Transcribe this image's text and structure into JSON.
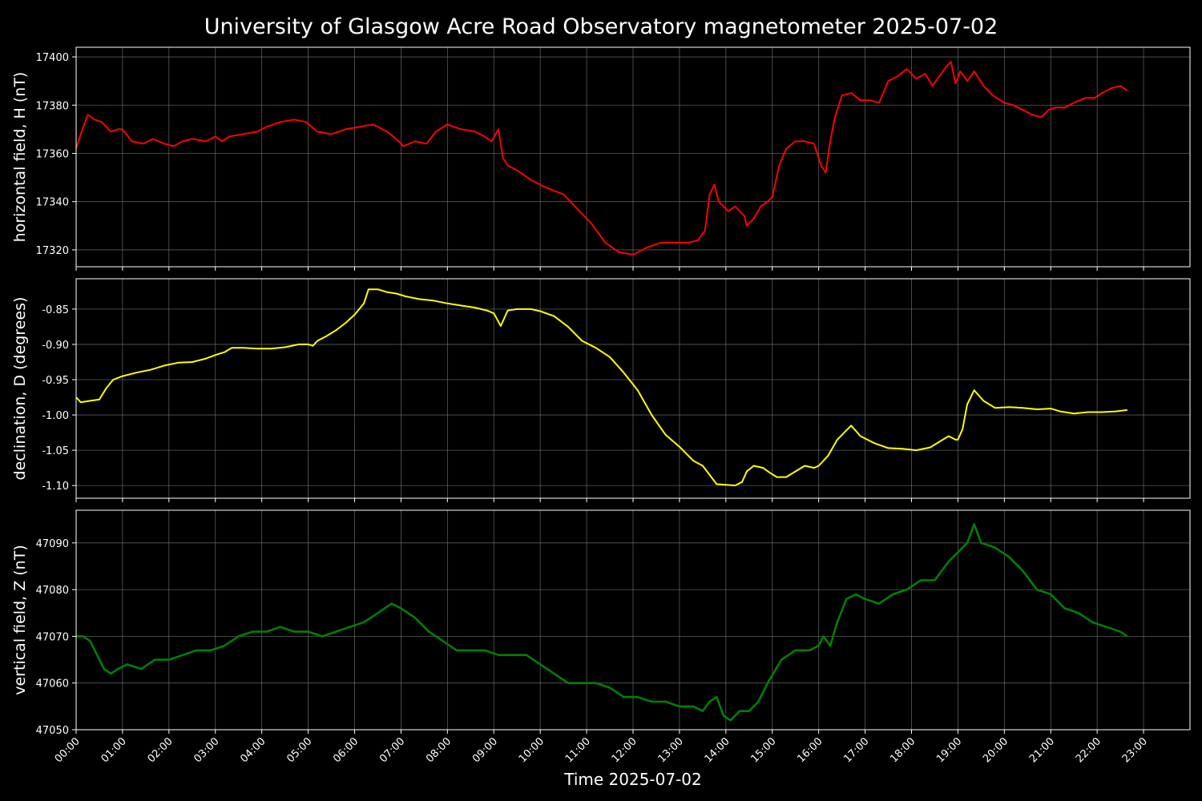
{
  "figure": {
    "title": "University of Glasgow Acre Road Observatory magnetometer 2025-07-02",
    "xlabel": "Time 2025-07-02",
    "x_ticks": [
      "00:00",
      "01:00",
      "02:00",
      "03:00",
      "04:00",
      "05:00",
      "06:00",
      "07:00",
      "08:00",
      "09:00",
      "10:00",
      "11:00",
      "12:00",
      "13:00",
      "14:00",
      "15:00",
      "16:00",
      "17:00",
      "18:00",
      "19:00",
      "20:00",
      "21:00",
      "22:00",
      "23:00"
    ],
    "background": "#000000",
    "grid_color": "#808080"
  },
  "chart_data": [
    {
      "type": "line",
      "ylabel": "horizontal field, H (nT)",
      "color": "#ff0000",
      "xlim": [
        0,
        24
      ],
      "ylim": [
        17313,
        17404
      ],
      "y_ticks": [
        17320,
        17340,
        17360,
        17380,
        17400
      ],
      "x_unit": "hours",
      "series": [
        {
          "x": [
            0,
            0.1,
            0.25,
            0.4,
            0.55,
            0.75,
            0.9,
            1.0,
            1.2,
            1.45,
            1.65,
            1.9,
            2.1,
            2.3,
            2.5,
            2.8,
            3.0,
            3.15,
            3.3,
            3.6,
            3.9,
            4.1,
            4.4,
            4.7,
            4.95,
            5.2,
            5.5,
            5.8,
            6.1,
            6.4,
            6.7,
            6.9,
            7.05,
            7.3,
            7.55,
            7.75,
            8.0,
            8.3,
            8.6,
            8.8,
            8.95,
            9.1,
            9.2,
            9.3,
            9.5,
            9.8,
            10.1,
            10.5,
            10.8,
            11.1,
            11.4,
            11.7,
            12.0,
            12.3,
            12.6,
            12.9,
            13.2,
            13.4,
            13.55,
            13.65,
            13.75,
            13.85,
            14.05,
            14.2,
            14.4,
            14.45,
            14.6,
            14.75,
            14.9,
            15.0,
            15.15,
            15.3,
            15.5,
            15.7,
            15.9,
            16.05,
            16.15,
            16.25,
            16.35,
            16.5,
            16.7,
            16.9,
            17.1,
            17.3,
            17.5,
            17.7,
            17.9,
            18.1,
            18.3,
            18.45,
            18.6,
            18.75,
            18.85,
            18.95,
            19.05,
            19.2,
            19.35,
            19.55,
            19.75,
            20.0,
            20.2,
            20.4,
            20.6,
            20.8,
            20.95,
            21.1,
            21.3,
            21.5,
            21.75,
            21.95,
            22.1,
            22.3,
            22.5,
            22.65
          ],
          "y": [
            17362,
            17368,
            17376,
            17374,
            17373,
            17369,
            17370,
            17370,
            17365,
            17364,
            17366,
            17364,
            17363,
            17365,
            17366,
            17365,
            17367,
            17365,
            17367,
            17368,
            17369,
            17371,
            17373,
            17374,
            17373,
            17369,
            17368,
            17370,
            17371,
            17372,
            17369,
            17366,
            17363,
            17365,
            17364,
            17369,
            17372,
            17370,
            17369,
            17367,
            17365,
            17370,
            17358,
            17355,
            17353,
            17349,
            17346,
            17343,
            17337,
            17331,
            17323,
            17319,
            17318,
            17321,
            17323,
            17323,
            17323,
            17324,
            17328,
            17343,
            17347,
            17340,
            17336,
            17338,
            17334,
            17330,
            17333,
            17338,
            17340,
            17342,
            17355,
            17362,
            17365,
            17365,
            17364,
            17355,
            17352,
            17365,
            17375,
            17384,
            17385,
            17382,
            17382,
            17381,
            17390,
            17392,
            17395,
            17391,
            17393,
            17388,
            17392,
            17396,
            17398,
            17389,
            17394,
            17390,
            17394,
            17388,
            17384,
            17381,
            17380,
            17378,
            17376,
            17375,
            17378,
            17379,
            17379,
            17381,
            17383,
            17383,
            17385,
            17387,
            17388,
            17386
          ]
        }
      ]
    },
    {
      "type": "line",
      "ylabel": "declination, D (degrees)",
      "color": "#ffff00",
      "xlim": [
        0,
        24
      ],
      "ylim": [
        -1.118,
        -0.807
      ],
      "y_ticks": [
        -0.85,
        -0.9,
        -0.95,
        -1.0,
        -1.05,
        -1.1
      ],
      "x_unit": "hours",
      "series": [
        {
          "x": [
            0,
            0.1,
            0.3,
            0.5,
            0.65,
            0.8,
            1.0,
            1.3,
            1.6,
            1.9,
            2.2,
            2.5,
            2.8,
            3.0,
            3.2,
            3.35,
            3.6,
            3.9,
            4.2,
            4.5,
            4.8,
            5.0,
            5.1,
            5.2,
            5.4,
            5.6,
            5.8,
            6.0,
            6.2,
            6.3,
            6.5,
            6.7,
            6.9,
            7.1,
            7.4,
            7.7,
            8.0,
            8.3,
            8.6,
            8.85,
            9.0,
            9.15,
            9.3,
            9.5,
            9.8,
            10.0,
            10.3,
            10.6,
            10.9,
            11.2,
            11.5,
            11.8,
            12.1,
            12.4,
            12.7,
            13.0,
            13.3,
            13.5,
            13.65,
            13.8,
            14.0,
            14.2,
            14.35,
            14.45,
            14.6,
            14.8,
            14.95,
            15.1,
            15.3,
            15.5,
            15.7,
            15.9,
            16.0,
            16.2,
            16.4,
            16.55,
            16.7,
            16.9,
            17.2,
            17.5,
            17.8,
            18.1,
            18.4,
            18.6,
            18.8,
            18.95,
            19.0,
            19.1,
            19.2,
            19.35,
            19.55,
            19.8,
            20.1,
            20.4,
            20.7,
            21.0,
            21.2,
            21.5,
            21.8,
            22.1,
            22.4,
            22.65
          ],
          "y": [
            -0.975,
            -0.982,
            -0.98,
            -0.978,
            -0.962,
            -0.95,
            -0.945,
            -0.94,
            -0.936,
            -0.93,
            -0.926,
            -0.925,
            -0.92,
            -0.915,
            -0.911,
            -0.905,
            -0.905,
            -0.906,
            -0.906,
            -0.904,
            -0.9,
            -0.9,
            -0.902,
            -0.895,
            -0.888,
            -0.88,
            -0.87,
            -0.858,
            -0.842,
            -0.822,
            -0.822,
            -0.826,
            -0.828,
            -0.832,
            -0.836,
            -0.838,
            -0.842,
            -0.845,
            -0.848,
            -0.852,
            -0.856,
            -0.874,
            -0.852,
            -0.85,
            -0.85,
            -0.853,
            -0.86,
            -0.875,
            -0.895,
            -0.905,
            -0.918,
            -0.94,
            -0.965,
            -1.0,
            -1.028,
            -1.045,
            -1.065,
            -1.072,
            -1.085,
            -1.098,
            -1.099,
            -1.1,
            -1.095,
            -1.08,
            -1.072,
            -1.075,
            -1.082,
            -1.088,
            -1.088,
            -1.08,
            -1.072,
            -1.075,
            -1.072,
            -1.058,
            -1.035,
            -1.025,
            -1.015,
            -1.03,
            -1.04,
            -1.047,
            -1.048,
            -1.05,
            -1.046,
            -1.038,
            -1.03,
            -1.035,
            -1.035,
            -1.02,
            -0.985,
            -0.965,
            -0.98,
            -0.99,
            -0.989,
            -0.99,
            -0.992,
            -0.991,
            -0.995,
            -0.998,
            -0.996,
            -0.996,
            -0.995,
            -0.993
          ]
        }
      ]
    },
    {
      "type": "line",
      "ylabel": "vertical field, Z (nT)",
      "color": "#008000",
      "xlim": [
        0,
        24
      ],
      "ylim": [
        47050,
        47097
      ],
      "y_ticks": [
        47050,
        47060,
        47070,
        47080,
        47090
      ],
      "x_unit": "hours",
      "series": [
        {
          "x": [
            0,
            0.15,
            0.3,
            0.45,
            0.6,
            0.75,
            0.9,
            1.1,
            1.4,
            1.7,
            2.0,
            2.3,
            2.6,
            2.9,
            3.2,
            3.5,
            3.8,
            4.1,
            4.4,
            4.7,
            5.0,
            5.3,
            5.6,
            5.9,
            6.2,
            6.5,
            6.8,
            7.0,
            7.3,
            7.6,
            7.9,
            8.2,
            8.5,
            8.8,
            9.1,
            9.4,
            9.7,
            10.0,
            10.3,
            10.6,
            10.9,
            11.2,
            11.5,
            11.8,
            12.1,
            12.4,
            12.7,
            13.0,
            13.3,
            13.5,
            13.65,
            13.8,
            13.95,
            14.1,
            14.3,
            14.5,
            14.7,
            14.9,
            15.2,
            15.5,
            15.8,
            16.0,
            16.1,
            16.25,
            16.4,
            16.6,
            16.8,
            17.0,
            17.3,
            17.6,
            17.9,
            18.2,
            18.5,
            18.8,
            19.0,
            19.2,
            19.35,
            19.5,
            19.8,
            20.1,
            20.4,
            20.7,
            21.0,
            21.3,
            21.6,
            21.9,
            22.2,
            22.5,
            22.65
          ],
          "y": [
            47070,
            47070,
            47069,
            47066,
            47063,
            47062,
            47063,
            47064,
            47063,
            47065,
            47065,
            47066,
            47067,
            47067,
            47068,
            47070,
            47071,
            47071,
            47072,
            47071,
            47071,
            47070,
            47071,
            47072,
            47073,
            47075,
            47077,
            47076,
            47074,
            47071,
            47069,
            47067,
            47067,
            47067,
            47066,
            47066,
            47066,
            47064,
            47062,
            47060,
            47060,
            47060,
            47059,
            47057,
            47057,
            47056,
            47056,
            47055,
            47055,
            47054,
            47056,
            47057,
            47053,
            47052,
            47054,
            47054,
            47056,
            47060,
            47065,
            47067,
            47067,
            47068,
            47070,
            47068,
            47073,
            47078,
            47079,
            47078,
            47077,
            47079,
            47080,
            47082,
            47082,
            47086,
            47088,
            47090,
            47094,
            47090,
            47089,
            47087,
            47084,
            47080,
            47079,
            47076,
            47075,
            47073,
            47072,
            47071,
            47070
          ]
        }
      ]
    }
  ]
}
